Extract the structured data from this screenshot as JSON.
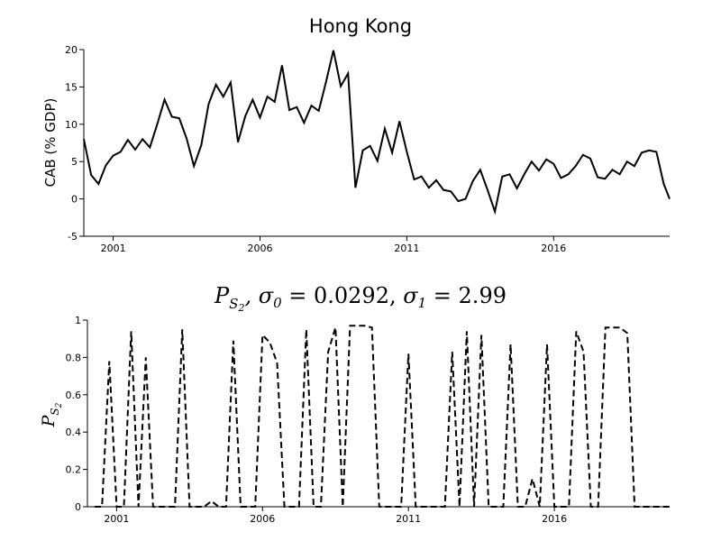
{
  "chart_data": [
    {
      "type": "line",
      "title": "Hong Kong",
      "xlabel": "",
      "ylabel": "CAB (% GDP)",
      "xlim": [
        2000.0,
        2019.95
      ],
      "ylim": [
        -5,
        20
      ],
      "x_ticks": [
        2001,
        2006,
        2011,
        2016
      ],
      "y_ticks": [
        -5,
        0,
        5,
        10,
        15,
        20
      ],
      "line_style": "solid",
      "grid": false,
      "series": [
        {
          "x": [
            2000.0,
            2000.25,
            2000.5,
            2000.75,
            2001.0,
            2001.25,
            2001.5,
            2001.75,
            2002.0,
            2002.25,
            2002.5,
            2002.75,
            2003.0,
            2003.25,
            2003.5,
            2003.75,
            2004.0,
            2004.25,
            2004.5,
            2004.75,
            2005.0,
            2005.25,
            2005.5,
            2005.75,
            2006.0,
            2006.25,
            2006.5,
            2006.75,
            2007.0,
            2007.25,
            2007.5,
            2007.75,
            2008.0,
            2008.25,
            2008.5,
            2008.75,
            2009.0,
            2009.25,
            2009.5,
            2009.75,
            2010.0,
            2010.25,
            2010.5,
            2010.75,
            2011.0,
            2011.25,
            2011.5,
            2011.75,
            2012.0,
            2012.25,
            2012.5,
            2012.75,
            2013.0,
            2013.25,
            2013.5,
            2013.75,
            2014.0,
            2014.25,
            2014.5,
            2014.75,
            2015.0,
            2015.25,
            2015.5,
            2015.75,
            2016.0,
            2016.25,
            2016.5,
            2016.75,
            2017.0,
            2017.25,
            2017.5,
            2017.75,
            2018.0,
            2018.25,
            2018.5,
            2018.75,
            2019.0,
            2019.25,
            2019.5,
            2019.75,
            2019.95
          ],
          "y": [
            8.0,
            3.2,
            2.0,
            4.5,
            5.8,
            6.3,
            7.9,
            6.6,
            8.0,
            6.9,
            10.0,
            13.3,
            11.0,
            10.8,
            8.1,
            4.4,
            7.2,
            12.7,
            15.3,
            13.7,
            15.6,
            7.6,
            11.1,
            13.3,
            10.9,
            13.7,
            13.0,
            17.9,
            11.9,
            12.3,
            10.2,
            12.5,
            11.8,
            15.7,
            19.9,
            15.1,
            16.8,
            1.5,
            6.5,
            7.1,
            5.1,
            9.4,
            6.2,
            10.4,
            6.3,
            2.6,
            3.0,
            1.5,
            2.5,
            1.2,
            1.0,
            -0.3,
            0.0,
            2.4,
            3.9,
            1.2,
            -1.7,
            3.0,
            3.3,
            1.4,
            3.3,
            5.0,
            3.8,
            5.3,
            4.7,
            2.8,
            3.3,
            4.4,
            5.9,
            5.4,
            2.9,
            2.7,
            3.9,
            3.3,
            5.0,
            4.4,
            6.2,
            6.5,
            6.3,
            2.0,
            0.0
          ]
        }
      ]
    },
    {
      "type": "line",
      "title": "P_{S_2}, σ_0 = 0.0292, σ_1 = 2.99",
      "xlabel": "",
      "ylabel": "P_{S_2}",
      "xlim": [
        2000.0,
        2019.95
      ],
      "ylim": [
        0,
        1
      ],
      "x_ticks": [
        2001,
        2006,
        2011,
        2016
      ],
      "y_ticks": [
        0,
        0.2,
        0.4,
        0.6,
        0.8,
        1
      ],
      "y_tick_labels": [
        "0",
        "0.2",
        "0.4",
        "0.6",
        "0.8",
        "1"
      ],
      "line_style": "dashed",
      "grid": false,
      "series": [
        {
          "x": [
            2000.25,
            2000.5,
            2000.75,
            2001.0,
            2001.25,
            2001.5,
            2001.75,
            2002.0,
            2002.25,
            2002.5,
            2002.75,
            2003.0,
            2003.25,
            2003.5,
            2003.75,
            2004.0,
            2004.25,
            2004.5,
            2004.75,
            2005.0,
            2005.25,
            2005.5,
            2005.75,
            2006.0,
            2006.25,
            2006.5,
            2006.75,
            2007.0,
            2007.25,
            2007.5,
            2007.75,
            2008.0,
            2008.25,
            2008.5,
            2008.75,
            2009.0,
            2009.25,
            2009.5,
            2009.75,
            2010.0,
            2010.25,
            2010.5,
            2010.75,
            2011.0,
            2011.25,
            2011.5,
            2011.75,
            2012.0,
            2012.25,
            2012.5,
            2012.75,
            2013.0,
            2013.25,
            2013.5,
            2013.75,
            2014.0,
            2014.25,
            2014.5,
            2014.75,
            2015.0,
            2015.25,
            2015.5,
            2015.75,
            2016.0,
            2016.25,
            2016.5,
            2016.75,
            2017.0,
            2017.25,
            2017.5,
            2017.75,
            2018.0,
            2018.25,
            2018.5,
            2018.75,
            2019.0,
            2019.25,
            2019.5,
            2019.75,
            2019.95
          ],
          "y": [
            0,
            0,
            0.78,
            0,
            0,
            0.94,
            0,
            0.8,
            0,
            0,
            0,
            0,
            0.95,
            0,
            0,
            0,
            0.03,
            0,
            0,
            0.89,
            0,
            0,
            0,
            0.92,
            0.88,
            0.77,
            0,
            0,
            0,
            0.95,
            0,
            0,
            0.83,
            0.96,
            0,
            0.97,
            0.97,
            0.97,
            0.96,
            0,
            0,
            0,
            0,
            0.82,
            0,
            0,
            0,
            0,
            0,
            0.83,
            0,
            0.94,
            0,
            0.92,
            0,
            0,
            0,
            0.87,
            0,
            0,
            0.15,
            0,
            0.87,
            0,
            0,
            0,
            0.94,
            0.83,
            0,
            0,
            0.96,
            0.96,
            0.96,
            0.93,
            0,
            0,
            0,
            0,
            0,
            0
          ]
        }
      ]
    }
  ]
}
